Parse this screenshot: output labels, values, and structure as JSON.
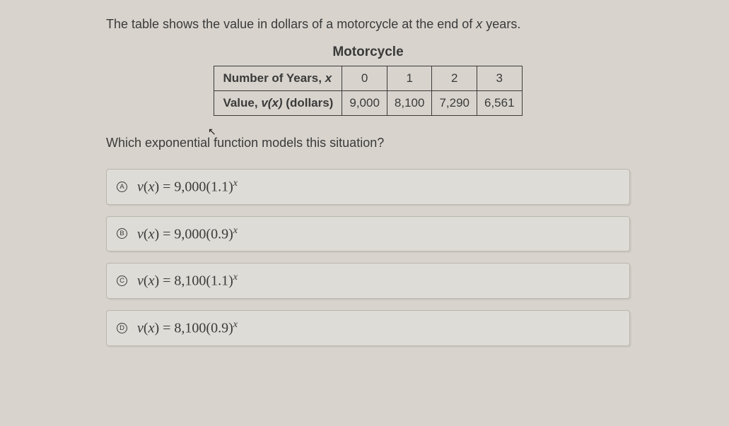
{
  "prompt": {
    "pre": "The table shows the value in dollars of a motorcycle at the end of ",
    "var": "x",
    "post": " years."
  },
  "table": {
    "title": "Motorcycle",
    "row1_label_pre": "Number of Years, ",
    "row1_label_var": "x",
    "row1_values": [
      "0",
      "1",
      "2",
      "3"
    ],
    "row2_label_pre": "Value, ",
    "row2_label_func": "v(x)",
    "row2_label_post": " (dollars)",
    "row2_values": [
      "9,000",
      "8,100",
      "7,290",
      "6,561"
    ]
  },
  "question": "Which exponential function models this situation?",
  "choices": [
    {
      "letter": "A",
      "fn_name": "v",
      "fn_var": "x",
      "eq": " = ",
      "coef": "9,000",
      "base": "(1.1)",
      "exp": "x"
    },
    {
      "letter": "B",
      "fn_name": "v",
      "fn_var": "x",
      "eq": " = ",
      "coef": "9,000",
      "base": "(0.9)",
      "exp": "x"
    },
    {
      "letter": "C",
      "fn_name": "v",
      "fn_var": "x",
      "eq": " = ",
      "coef": "8,100",
      "base": "(1.1)",
      "exp": "x"
    },
    {
      "letter": "D",
      "fn_name": "v",
      "fn_var": "x",
      "eq": " = ",
      "coef": "8,100",
      "base": "(0.9)",
      "exp": "x"
    }
  ],
  "colors": {
    "page_bg": "#d8d4cd",
    "choice_bg": "#dedcd6",
    "choice_border": "#b9b6ae",
    "text": "#3a3a3a",
    "table_border": "#3a3a3a"
  }
}
